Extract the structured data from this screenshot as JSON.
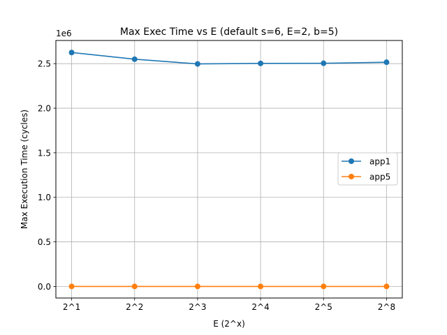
{
  "chart_data": {
    "type": "line",
    "title": "Max Exec Time vs E (default s=6, E=2, b=5)",
    "xlabel": "E (2^x)",
    "ylabel": "Max Execution Time (cycles)",
    "y_offset_label": "1e6",
    "categories": [
      "2^1",
      "2^2",
      "2^3",
      "2^4",
      "2^5",
      "2^8"
    ],
    "yticks": [
      "0.0",
      "0.5",
      "1.0",
      "1.5",
      "2.0",
      "2.5"
    ],
    "ytick_values": [
      0,
      0.5,
      1.0,
      1.5,
      2.0,
      2.5
    ],
    "ylim": [
      -0.13,
      2.76
    ],
    "grid": true,
    "legend_position": "center-right",
    "series": [
      {
        "name": "app1",
        "color": "#1f77b4",
        "values": [
          2.625,
          2.55,
          2.497,
          2.503,
          2.504,
          2.516
        ]
      },
      {
        "name": "app5",
        "color": "#ff7f0e",
        "values": [
          0.0,
          0.0,
          0.0,
          0.0,
          0.0,
          0.0
        ]
      }
    ]
  }
}
